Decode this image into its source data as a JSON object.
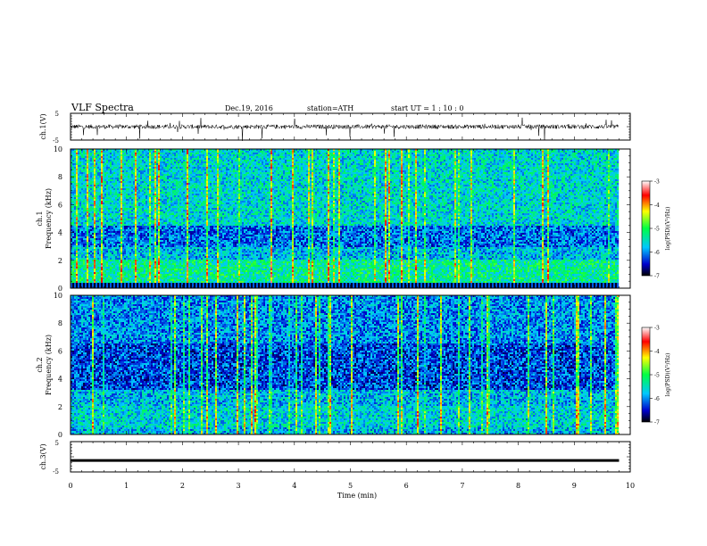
{
  "header": {
    "title": "VLF  Spectra",
    "date": "Dec.19, 2016",
    "station": "station=ATH",
    "start": "start  UT  =   1 : 10 : 0"
  },
  "chart_data": [
    {
      "type": "line",
      "ylabel": "ch.1(V)",
      "ylim": [
        -5,
        5
      ],
      "yticks": [
        "5",
        "-5"
      ],
      "xlim": [
        0,
        10
      ],
      "baseline": 0,
      "data_end_min": 9.8,
      "color": "#000000"
    },
    {
      "type": "heatmap",
      "ylabel_line1": "ch.1",
      "ylabel_line2": "Frequency  (kHz)",
      "ylim": [
        0,
        10
      ],
      "yticks": [
        "0",
        "2",
        "4",
        "6",
        "8",
        "10"
      ],
      "xlim": [
        0,
        10
      ],
      "data_end_min": 9.8,
      "colorbar": {
        "label": "log(PSD)(V²/Hz)",
        "range": [
          -7,
          -3
        ],
        "ticks": [
          "-3",
          "-4",
          "-5",
          "-6",
          "-7"
        ],
        "colors": [
          "#000000",
          "#0000cc",
          "#00c8ff",
          "#00ff44",
          "#ffff00",
          "#ff0000",
          "#ffffff"
        ]
      }
    },
    {
      "type": "heatmap",
      "ylabel_line1": "ch.2",
      "ylabel_line2": "Frequency  (kHz)",
      "ylim": [
        0,
        10
      ],
      "yticks": [
        "0",
        "2",
        "4",
        "6",
        "8",
        "10"
      ],
      "xlim": [
        0,
        10
      ],
      "data_end_min": 9.8,
      "colorbar": {
        "label": "log(PSD)(V²/Hz)",
        "range": [
          -7,
          -3
        ],
        "ticks": [
          "-3",
          "-4",
          "-5",
          "-6",
          "-7"
        ],
        "colors": [
          "#000000",
          "#0000cc",
          "#00c8ff",
          "#00ff44",
          "#ffff00",
          "#ff0000",
          "#ffffff"
        ]
      }
    },
    {
      "type": "line",
      "ylabel": "ch.3(V)",
      "ylim": [
        -5,
        5
      ],
      "yticks": [
        "5",
        "-5"
      ],
      "xlim": [
        0,
        10
      ],
      "value": -1.2,
      "data_end_min": 9.8,
      "color": "#000000"
    }
  ],
  "xaxis": {
    "label": "Time  (min)",
    "ticks": [
      "0",
      "1",
      "2",
      "3",
      "4",
      "5",
      "6",
      "7",
      "8",
      "9",
      "10"
    ],
    "range": [
      0,
      10
    ]
  }
}
